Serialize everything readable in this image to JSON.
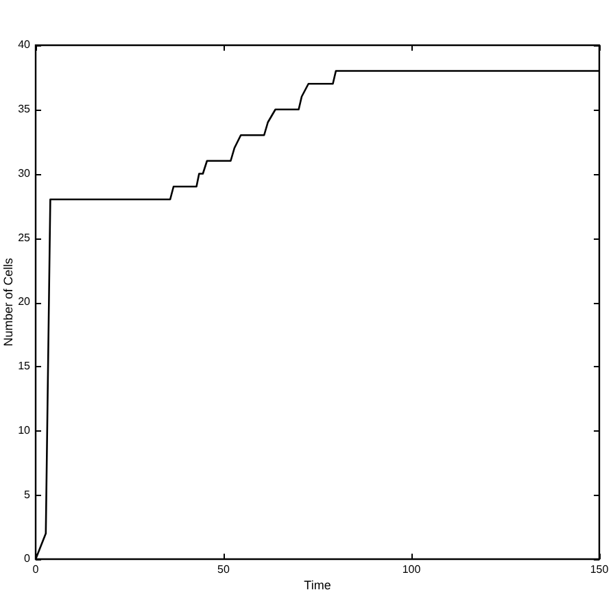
{
  "chart_data": {
    "type": "line",
    "xlabel": "Time",
    "ylabel": "Number of Cells",
    "xlim": [
      0,
      150
    ],
    "xticks": [
      0,
      50,
      100,
      150
    ],
    "ylim": [
      0,
      40
    ],
    "yticks": [
      0,
      5,
      10,
      15,
      20,
      25,
      30,
      35,
      40
    ],
    "grid": false,
    "legend": false,
    "marker": "none",
    "line_style": "solid",
    "series": [
      {
        "color": "#000000",
        "x": [
          0,
          2.7,
          3.9,
          35.8,
          36.7,
          42.8,
          43.5,
          44.5,
          45.6,
          51.9,
          52.9,
          54.6,
          60.8,
          61.8,
          63.8,
          70.0,
          70.8,
          72.6,
          79.1,
          79.9,
          150
        ],
        "values": [
          0,
          2,
          28,
          28,
          29,
          29,
          30,
          30,
          31,
          31,
          32,
          33,
          33,
          34,
          35,
          35,
          36,
          37,
          37,
          38,
          38
        ]
      }
    ]
  }
}
